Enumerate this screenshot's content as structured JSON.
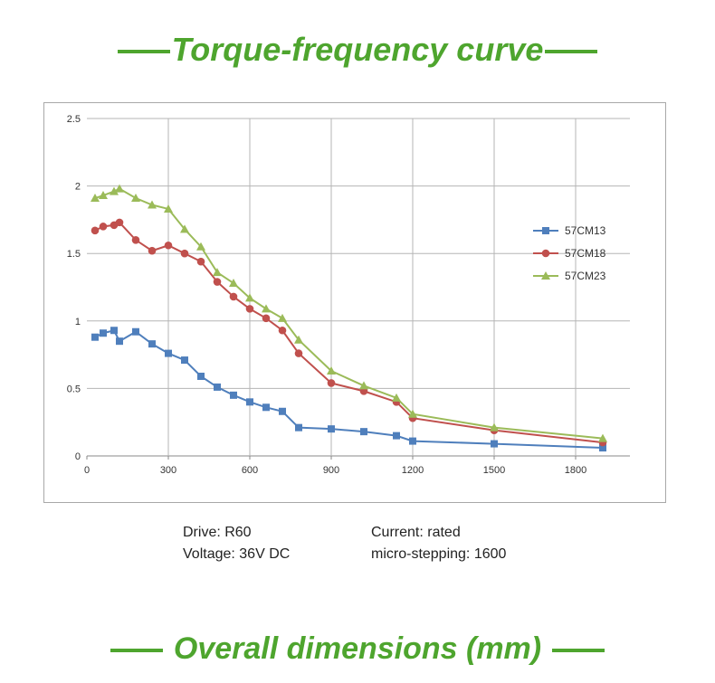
{
  "titles": {
    "top": "Torque-frequency curve",
    "bottom": "Overall dimensions (mm)"
  },
  "colors": {
    "heading": "#4ea52e"
  },
  "info": {
    "drive": "Drive: R60",
    "voltage": "Voltage: 36V DC",
    "current": "Current: rated",
    "microstep": "micro-stepping: 1600"
  },
  "chart_data": {
    "type": "line",
    "title": "",
    "xlabel": "",
    "ylabel": "",
    "xlim": [
      0,
      2000
    ],
    "ylim": [
      0,
      2.5
    ],
    "xticks": [
      0,
      300,
      600,
      900,
      1200,
      1500,
      1800
    ],
    "yticks": [
      0,
      0.5,
      1,
      1.5,
      2,
      2.5
    ],
    "ytick_labels": [
      "0",
      "0.5",
      "1",
      "1.5",
      "2",
      "2.5"
    ],
    "grid": true,
    "legend": "right",
    "series": [
      {
        "name": "57CM13",
        "color": "#4f7fbc",
        "marker": "square",
        "x": [
          30,
          60,
          100,
          120,
          180,
          240,
          300,
          360,
          420,
          480,
          540,
          600,
          660,
          720,
          780,
          900,
          1020,
          1140,
          1200,
          1500,
          1900
        ],
        "y": [
          0.88,
          0.91,
          0.93,
          0.85,
          0.92,
          0.83,
          0.76,
          0.71,
          0.59,
          0.51,
          0.45,
          0.4,
          0.36,
          0.33,
          0.21,
          0.2,
          0.18,
          0.15,
          0.11,
          0.09,
          0.06
        ]
      },
      {
        "name": "57CM18",
        "color": "#c0504d",
        "marker": "circle",
        "x": [
          30,
          60,
          100,
          120,
          180,
          240,
          300,
          360,
          420,
          480,
          540,
          600,
          660,
          720,
          780,
          900,
          1020,
          1140,
          1200,
          1500,
          1900
        ],
        "y": [
          1.67,
          1.7,
          1.71,
          1.73,
          1.6,
          1.52,
          1.56,
          1.5,
          1.44,
          1.29,
          1.18,
          1.09,
          1.02,
          0.93,
          0.76,
          0.54,
          0.48,
          0.4,
          0.28,
          0.19,
          0.1
        ]
      },
      {
        "name": "57CM23",
        "color": "#9bbb59",
        "marker": "triangle",
        "x": [
          30,
          60,
          100,
          120,
          180,
          240,
          300,
          360,
          420,
          480,
          540,
          600,
          660,
          720,
          780,
          900,
          1020,
          1140,
          1200,
          1500,
          1900
        ],
        "y": [
          1.91,
          1.93,
          1.96,
          1.98,
          1.91,
          1.86,
          1.83,
          1.68,
          1.55,
          1.36,
          1.28,
          1.17,
          1.09,
          1.02,
          0.86,
          0.63,
          0.52,
          0.43,
          0.31,
          0.21,
          0.13
        ]
      }
    ]
  }
}
